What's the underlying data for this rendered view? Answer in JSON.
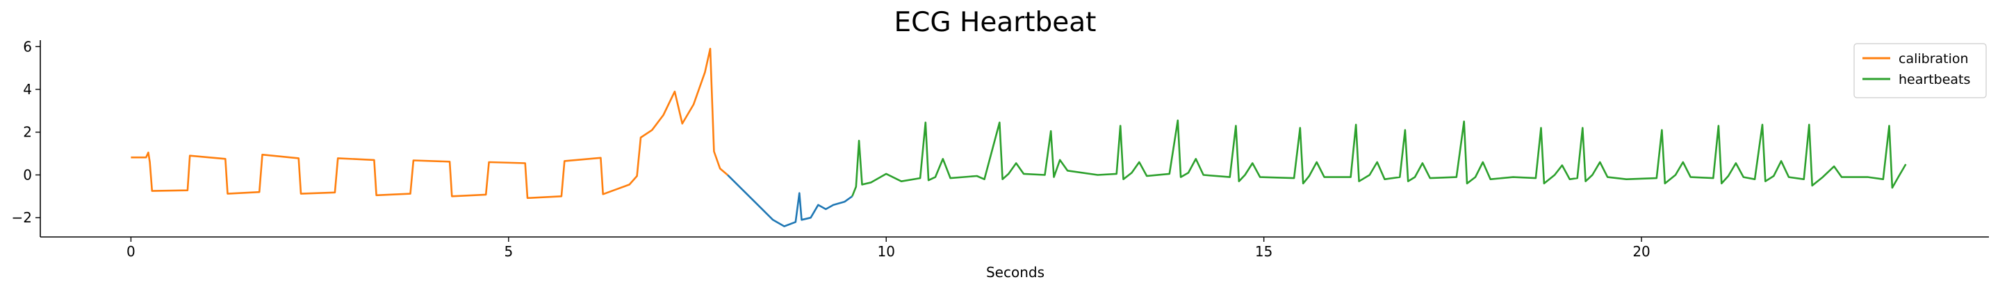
{
  "chart_data": {
    "type": "line",
    "title": "ECG Heartbeat",
    "xlabel": "Seconds",
    "ylabel": "",
    "xlim": [
      -1.2,
      24.6
    ],
    "ylim": [
      -2.9,
      6.3
    ],
    "x_ticks": [
      0,
      5,
      10,
      15,
      20
    ],
    "y_ticks": [
      -2,
      0,
      2,
      4,
      6
    ],
    "grid": false,
    "legend_position": "top-right",
    "signal_color": "#1f77b4",
    "series": [
      {
        "name": "calibration",
        "color": "#ff7f0e",
        "points": [
          [
            0.0,
            0.82
          ],
          [
            0.2,
            0.82
          ],
          [
            0.23,
            1.05
          ],
          [
            0.25,
            0.6
          ],
          [
            0.28,
            -0.75
          ],
          [
            0.75,
            -0.72
          ],
          [
            0.78,
            0.9
          ],
          [
            1.25,
            0.75
          ],
          [
            1.28,
            -0.88
          ],
          [
            1.7,
            -0.8
          ],
          [
            1.74,
            0.95
          ],
          [
            2.22,
            0.78
          ],
          [
            2.25,
            -0.88
          ],
          [
            2.7,
            -0.82
          ],
          [
            2.74,
            0.78
          ],
          [
            3.22,
            0.7
          ],
          [
            3.25,
            -0.95
          ],
          [
            3.7,
            -0.88
          ],
          [
            3.74,
            0.68
          ],
          [
            4.22,
            0.62
          ],
          [
            4.25,
            -1.0
          ],
          [
            4.7,
            -0.92
          ],
          [
            4.74,
            0.6
          ],
          [
            5.22,
            0.55
          ],
          [
            5.25,
            -1.08
          ],
          [
            5.7,
            -1.0
          ],
          [
            5.74,
            0.65
          ],
          [
            6.22,
            0.8
          ],
          [
            6.25,
            -0.9
          ],
          [
            6.6,
            -0.45
          ],
          [
            6.7,
            -0.05
          ],
          [
            6.75,
            1.75
          ],
          [
            6.9,
            2.1
          ],
          [
            7.05,
            2.8
          ],
          [
            7.2,
            3.9
          ],
          [
            7.3,
            2.4
          ],
          [
            7.45,
            3.3
          ],
          [
            7.6,
            4.8
          ],
          [
            7.67,
            5.9
          ],
          [
            7.72,
            1.1
          ],
          [
            7.8,
            0.3
          ],
          [
            7.9,
            0.0
          ]
        ]
      },
      {
        "name": "",
        "color": "#1f77b4",
        "points": [
          [
            7.9,
            0.0
          ],
          [
            8.1,
            -0.7
          ],
          [
            8.3,
            -1.4
          ],
          [
            8.5,
            -2.1
          ],
          [
            8.65,
            -2.4
          ],
          [
            8.8,
            -2.2
          ],
          [
            8.85,
            -0.85
          ],
          [
            8.88,
            -2.1
          ],
          [
            9.0,
            -2.0
          ],
          [
            9.1,
            -1.4
          ],
          [
            9.2,
            -1.6
          ],
          [
            9.3,
            -1.4
          ],
          [
            9.45,
            -1.25
          ],
          [
            9.55,
            -1.0
          ]
        ]
      },
      {
        "name": "heartbeats",
        "color": "#2ca02c",
        "points": [
          [
            9.55,
            -1.0
          ],
          [
            9.6,
            -0.55
          ],
          [
            9.64,
            1.6
          ],
          [
            9.68,
            -0.45
          ],
          [
            9.8,
            -0.35
          ],
          [
            10.0,
            0.05
          ],
          [
            10.2,
            -0.3
          ],
          [
            10.45,
            -0.15
          ],
          [
            10.52,
            2.45
          ],
          [
            10.56,
            -0.25
          ],
          [
            10.65,
            -0.1
          ],
          [
            10.75,
            0.75
          ],
          [
            10.85,
            -0.15
          ],
          [
            11.2,
            -0.05
          ],
          [
            11.3,
            -0.2
          ],
          [
            11.5,
            2.45
          ],
          [
            11.54,
            -0.2
          ],
          [
            11.62,
            0.05
          ],
          [
            11.72,
            0.55
          ],
          [
            11.82,
            0.05
          ],
          [
            12.1,
            0.0
          ],
          [
            12.18,
            2.05
          ],
          [
            12.22,
            -0.1
          ],
          [
            12.3,
            0.7
          ],
          [
            12.4,
            0.2
          ],
          [
            12.8,
            0.0
          ],
          [
            13.05,
            0.05
          ],
          [
            13.1,
            2.3
          ],
          [
            13.14,
            -0.2
          ],
          [
            13.25,
            0.1
          ],
          [
            13.35,
            0.6
          ],
          [
            13.45,
            -0.05
          ],
          [
            13.75,
            0.05
          ],
          [
            13.86,
            2.55
          ],
          [
            13.9,
            -0.1
          ],
          [
            14.0,
            0.1
          ],
          [
            14.1,
            0.75
          ],
          [
            14.2,
            0.0
          ],
          [
            14.55,
            -0.1
          ],
          [
            14.63,
            2.3
          ],
          [
            14.67,
            -0.3
          ],
          [
            14.75,
            0.0
          ],
          [
            14.85,
            0.55
          ],
          [
            14.95,
            -0.1
          ],
          [
            15.4,
            -0.15
          ],
          [
            15.48,
            2.2
          ],
          [
            15.52,
            -0.4
          ],
          [
            15.6,
            -0.05
          ],
          [
            15.7,
            0.6
          ],
          [
            15.8,
            -0.1
          ],
          [
            16.15,
            -0.1
          ],
          [
            16.22,
            2.35
          ],
          [
            16.26,
            -0.3
          ],
          [
            16.4,
            0.0
          ],
          [
            16.5,
            0.6
          ],
          [
            16.6,
            -0.2
          ],
          [
            16.8,
            -0.1
          ],
          [
            16.87,
            2.1
          ],
          [
            16.91,
            -0.3
          ],
          [
            17.0,
            -0.1
          ],
          [
            17.1,
            0.55
          ],
          [
            17.2,
            -0.15
          ],
          [
            17.55,
            -0.1
          ],
          [
            17.65,
            2.5
          ],
          [
            17.69,
            -0.4
          ],
          [
            17.8,
            -0.1
          ],
          [
            17.9,
            0.6
          ],
          [
            18.0,
            -0.2
          ],
          [
            18.3,
            -0.1
          ],
          [
            18.6,
            -0.15
          ],
          [
            18.67,
            2.2
          ],
          [
            18.71,
            -0.4
          ],
          [
            18.85,
            0.0
          ],
          [
            18.95,
            0.45
          ],
          [
            19.05,
            -0.2
          ],
          [
            19.15,
            -0.15
          ],
          [
            19.22,
            2.2
          ],
          [
            19.26,
            -0.3
          ],
          [
            19.35,
            0.0
          ],
          [
            19.45,
            0.6
          ],
          [
            19.55,
            -0.1
          ],
          [
            19.8,
            -0.2
          ],
          [
            20.2,
            -0.15
          ],
          [
            20.27,
            2.1
          ],
          [
            20.31,
            -0.4
          ],
          [
            20.45,
            0.0
          ],
          [
            20.55,
            0.6
          ],
          [
            20.65,
            -0.1
          ],
          [
            20.95,
            -0.15
          ],
          [
            21.02,
            2.3
          ],
          [
            21.06,
            -0.4
          ],
          [
            21.15,
            -0.05
          ],
          [
            21.25,
            0.55
          ],
          [
            21.35,
            -0.1
          ],
          [
            21.5,
            -0.2
          ],
          [
            21.6,
            2.35
          ],
          [
            21.64,
            -0.3
          ],
          [
            21.75,
            -0.05
          ],
          [
            21.85,
            0.65
          ],
          [
            21.95,
            -0.1
          ],
          [
            22.15,
            -0.2
          ],
          [
            22.22,
            2.35
          ],
          [
            22.26,
            -0.5
          ],
          [
            22.4,
            -0.1
          ],
          [
            22.55,
            0.4
          ],
          [
            22.65,
            -0.1
          ],
          [
            23.0,
            -0.1
          ],
          [
            23.2,
            -0.2
          ],
          [
            23.28,
            2.3
          ],
          [
            23.32,
            -0.6
          ],
          [
            23.4,
            -0.1
          ],
          [
            23.5,
            0.5
          ]
        ]
      }
    ]
  }
}
